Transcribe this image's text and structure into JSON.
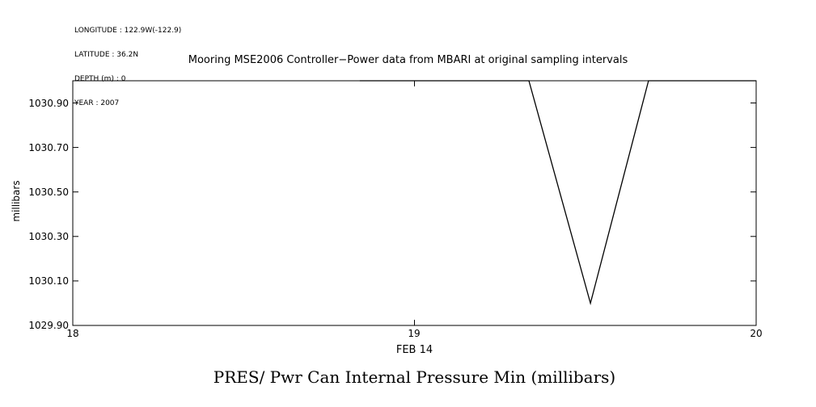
{
  "meta": {
    "longitude": "LONGITUDE : 122.9W(-122.9)",
    "latitude": "LATITUDE : 36.2N",
    "depth": "DEPTH (m) : 0",
    "year": "YEAR : 2007"
  },
  "titles": {
    "top": "Mooring MSE2006 Controller−Power data from MBARI at original sampling intervals",
    "bottom": "PRES/ Pwr Can Internal Pressure Min (millibars)",
    "x_axis": "FEB 14",
    "y_axis": "millibars"
  },
  "chart_data": {
    "type": "line",
    "title": "Mooring MSE2006 Controller−Power data from MBARI at original sampling intervals",
    "subtitle": "PRES/ Pwr Can Internal Pressure Min (millibars)",
    "xlabel": "FEB 14",
    "ylabel": "millibars",
    "xlim": [
      18,
      20
    ],
    "ylim": [
      1029.9,
      1031.0
    ],
    "x_ticks": [
      "18",
      "19",
      "20"
    ],
    "x_tick_values": [
      18,
      19,
      20
    ],
    "y_ticks": [
      "1030.90",
      "1030.70",
      "1030.50",
      "1030.30",
      "1030.10",
      "1029.90"
    ],
    "y_tick_values": [
      1030.9,
      1030.7,
      1030.5,
      1030.3,
      1030.1,
      1029.9
    ],
    "grid": false,
    "legend": "none",
    "line_color": "#000000",
    "frame_color": "#000000",
    "series": [
      {
        "name": "PRES/ Pwr Can Internal Pressure Min",
        "points": [
          [
            18.84,
            1031.0
          ],
          [
            19.335,
            1031.0
          ],
          [
            19.515,
            1030.0
          ],
          [
            19.685,
            1031.0
          ],
          [
            20.0,
            1031.0
          ]
        ]
      }
    ]
  }
}
